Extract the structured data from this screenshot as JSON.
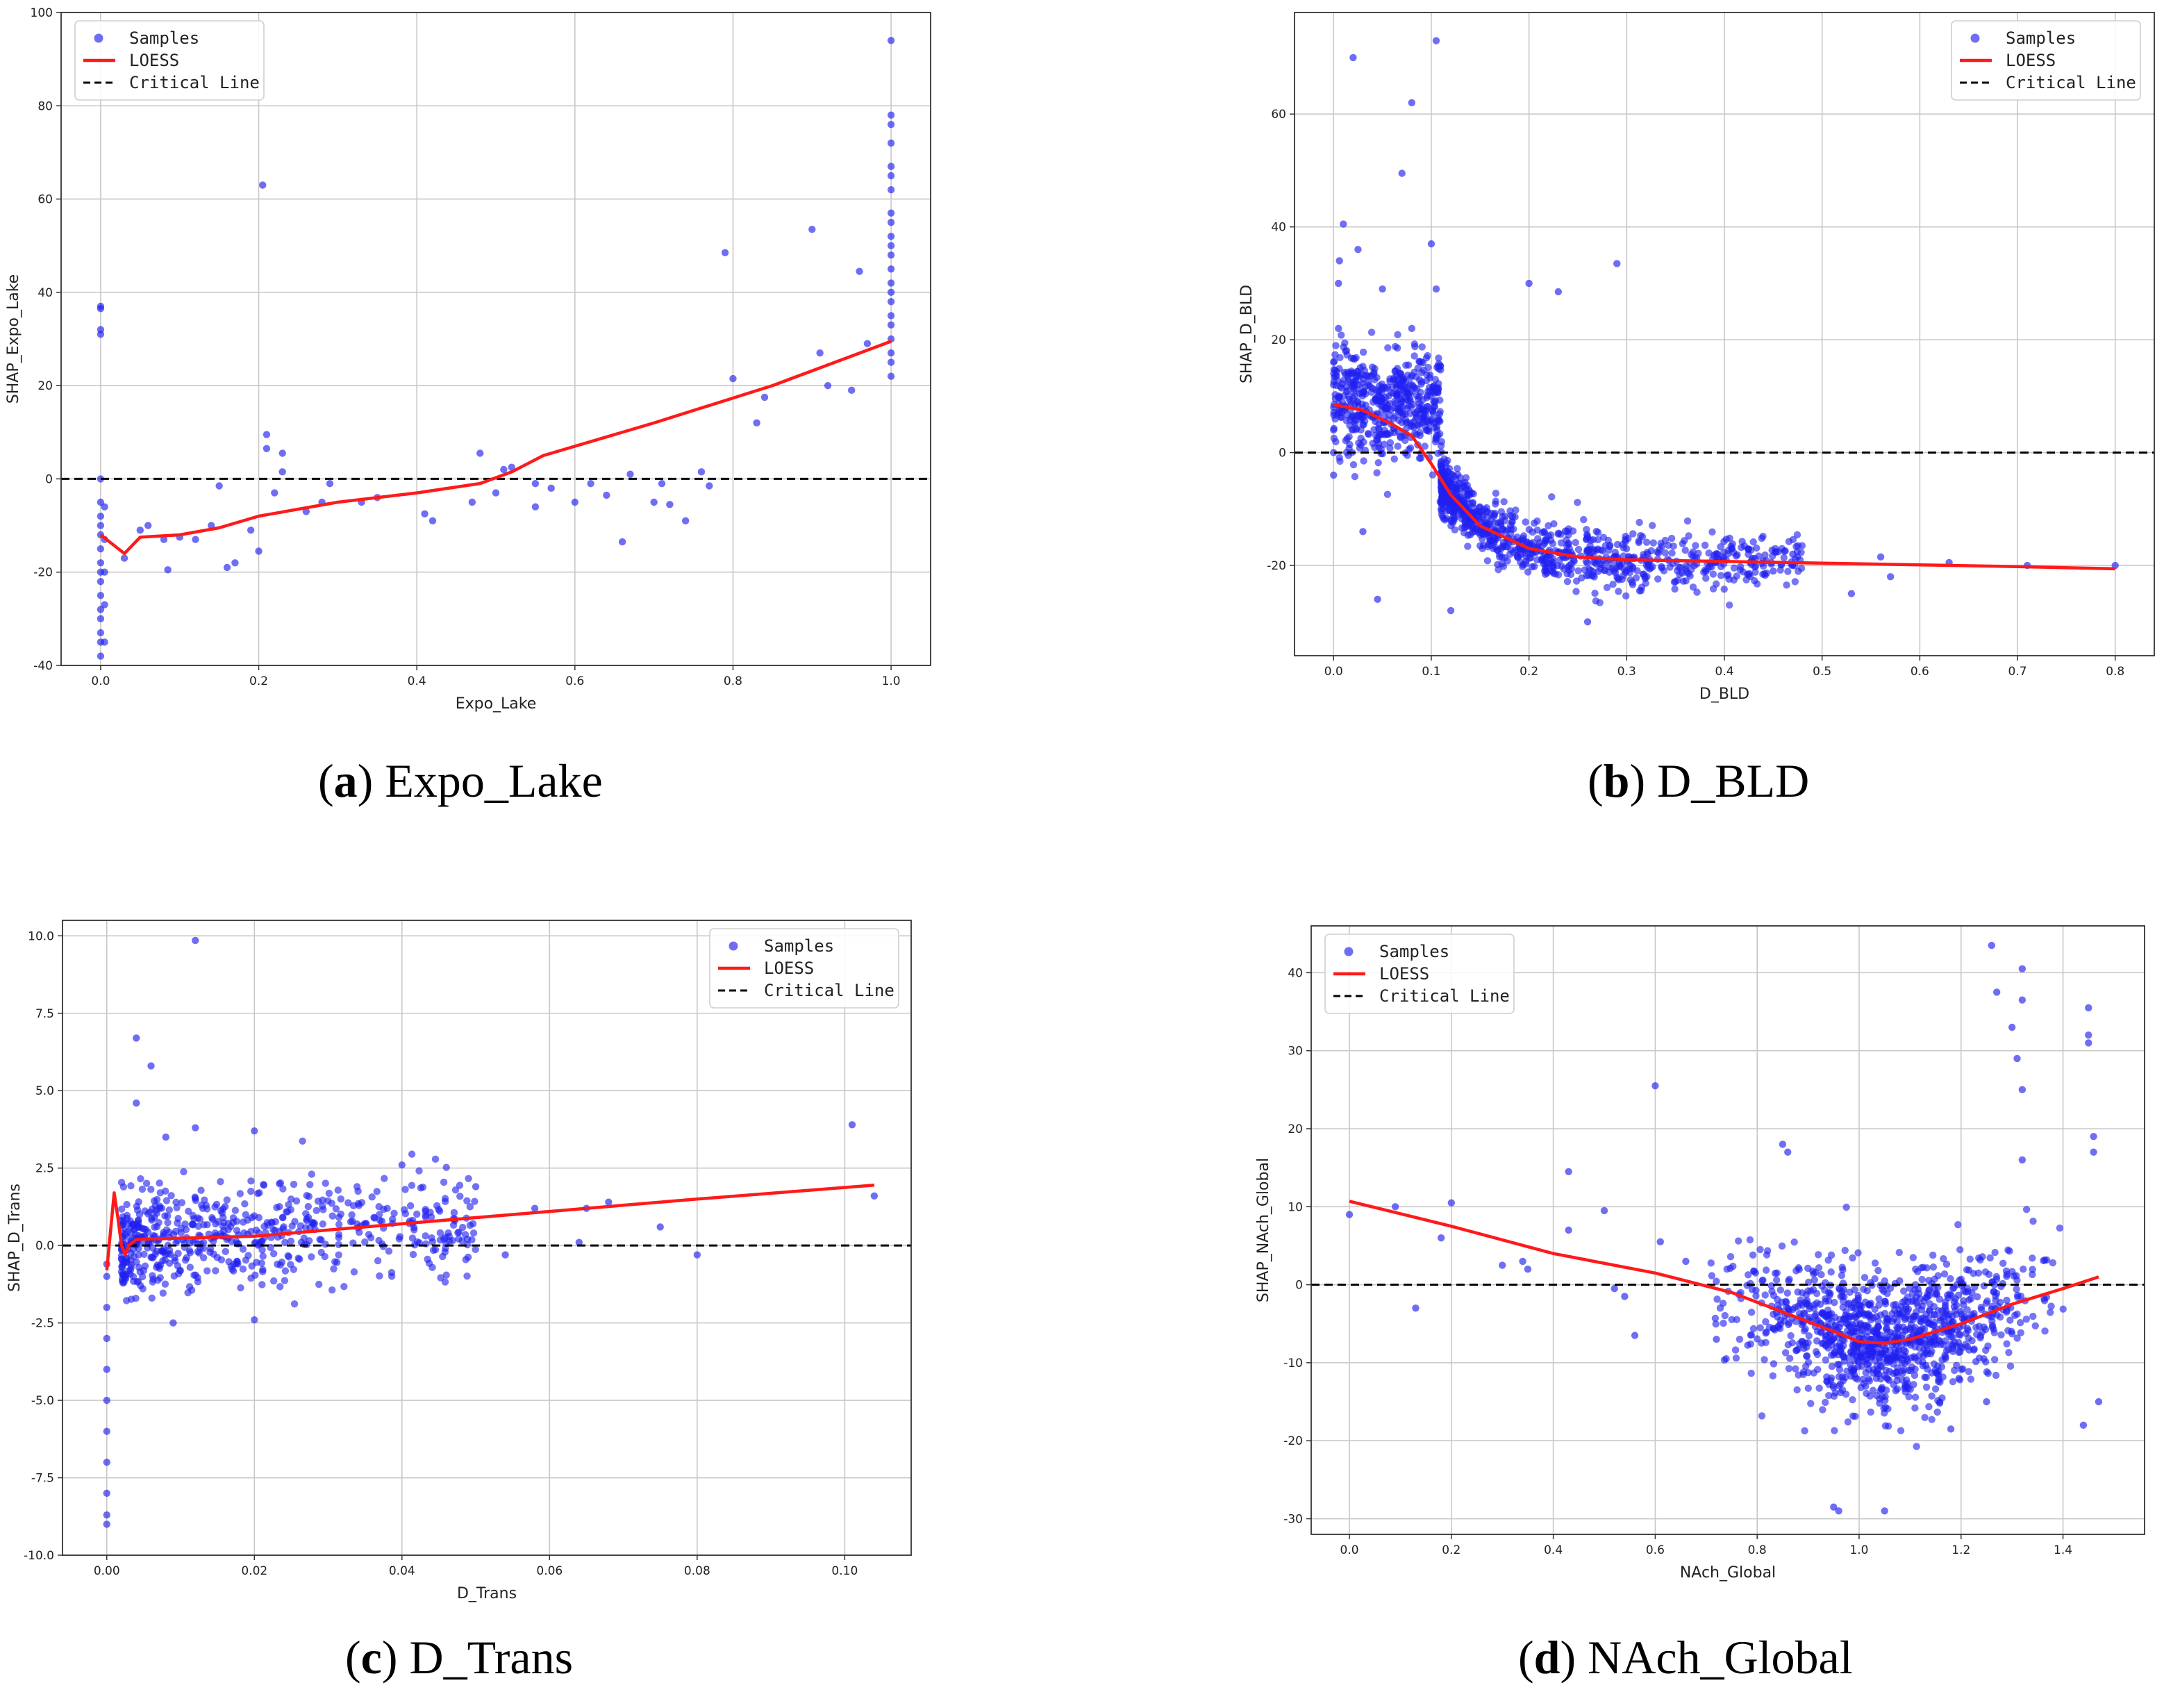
{
  "chart_data": [
    {
      "id": "a",
      "type": "scatter",
      "caption_letter": "a",
      "caption_text": "Expo_Lake",
      "xlabel": "Expo_Lake",
      "ylabel": "SHAP_Expo_Lake",
      "xlim": [
        -0.05,
        1.05
      ],
      "ylim": [
        -40,
        100
      ],
      "xticks": [
        0.0,
        0.2,
        0.4,
        0.6,
        0.8,
        1.0
      ],
      "xtick_labels": [
        "0.0",
        "0.2",
        "0.4",
        "0.6",
        "0.8",
        "1.0"
      ],
      "yticks": [
        -40,
        -20,
        0,
        20,
        40,
        60,
        80,
        100
      ],
      "ytick_labels": [
        "-40",
        "-20",
        "0",
        "20",
        "40",
        "60",
        "80",
        "100"
      ],
      "legend": [
        "Samples",
        "LOESS",
        "Critical Line"
      ],
      "legend_position": "top-left",
      "critical_line_y": 0,
      "loess": {
        "x": [
          0.0,
          0.03,
          0.05,
          0.1,
          0.15,
          0.2,
          0.3,
          0.4,
          0.48,
          0.52,
          0.56,
          0.7,
          0.85,
          1.0
        ],
        "y": [
          -12,
          -16,
          -12.5,
          -12,
          -10.5,
          -8,
          -5,
          -3,
          -1,
          1.5,
          5,
          12,
          20,
          29.5
        ]
      },
      "samples": [
        [
          0.0,
          -38
        ],
        [
          0.0,
          -35
        ],
        [
          0.0,
          -30
        ],
        [
          0.0,
          -25
        ],
        [
          0.0,
          -20
        ],
        [
          0.0,
          -15
        ],
        [
          0.0,
          -10
        ],
        [
          0.0,
          -5
        ],
        [
          0.0,
          0
        ],
        [
          0.0,
          31
        ],
        [
          0.0,
          32
        ],
        [
          0.0,
          36.5
        ],
        [
          0.0,
          37
        ],
        [
          0.0,
          -33
        ],
        [
          0.0,
          -28
        ],
        [
          0.0,
          -22
        ],
        [
          0.0,
          -18
        ],
        [
          0.0,
          -12
        ],
        [
          0.0,
          -8
        ],
        [
          0.005,
          -35
        ],
        [
          0.005,
          -27
        ],
        [
          0.005,
          -20
        ],
        [
          0.005,
          -13
        ],
        [
          0.005,
          -6
        ],
        [
          0.03,
          -17
        ],
        [
          0.05,
          -11
        ],
        [
          0.06,
          -10
        ],
        [
          0.08,
          -13
        ],
        [
          0.085,
          -19.5
        ],
        [
          0.1,
          -12.5
        ],
        [
          0.12,
          -13
        ],
        [
          0.14,
          -10
        ],
        [
          0.15,
          -1.5
        ],
        [
          0.16,
          -19
        ],
        [
          0.17,
          -18
        ],
        [
          0.19,
          -11
        ],
        [
          0.2,
          -15.5
        ],
        [
          0.205,
          63
        ],
        [
          0.21,
          9.5
        ],
        [
          0.21,
          6.5
        ],
        [
          0.22,
          -3
        ],
        [
          0.23,
          5.5
        ],
        [
          0.23,
          1.5
        ],
        [
          0.26,
          -7
        ],
        [
          0.28,
          -5
        ],
        [
          0.29,
          -1
        ],
        [
          0.33,
          -5
        ],
        [
          0.35,
          -4
        ],
        [
          0.41,
          -7.5
        ],
        [
          0.42,
          -9
        ],
        [
          0.47,
          -5
        ],
        [
          0.48,
          5.5
        ],
        [
          0.5,
          -3
        ],
        [
          0.51,
          2
        ],
        [
          0.52,
          2.5
        ],
        [
          0.55,
          -6
        ],
        [
          0.55,
          -1
        ],
        [
          0.57,
          -2
        ],
        [
          0.6,
          -5
        ],
        [
          0.62,
          -1
        ],
        [
          0.64,
          -3.5
        ],
        [
          0.66,
          -13.5
        ],
        [
          0.67,
          1
        ],
        [
          0.7,
          -5
        ],
        [
          0.71,
          -1
        ],
        [
          0.72,
          -5.5
        ],
        [
          0.74,
          -9
        ],
        [
          0.76,
          1.5
        ],
        [
          0.77,
          -1.5
        ],
        [
          0.79,
          48.5
        ],
        [
          0.8,
          21.5
        ],
        [
          0.83,
          12
        ],
        [
          0.84,
          17.5
        ],
        [
          0.9,
          53.5
        ],
        [
          0.91,
          27
        ],
        [
          0.92,
          20
        ],
        [
          0.95,
          19
        ],
        [
          0.96,
          44.5
        ],
        [
          0.97,
          29
        ],
        [
          1.0,
          25
        ],
        [
          1.0,
          30
        ],
        [
          1.0,
          35
        ],
        [
          1.0,
          40
        ],
        [
          1.0,
          45
        ],
        [
          1.0,
          50
        ],
        [
          1.0,
          55
        ],
        [
          1.0,
          57
        ],
        [
          1.0,
          62
        ],
        [
          1.0,
          65
        ],
        [
          1.0,
          67
        ],
        [
          1.0,
          72
        ],
        [
          1.0,
          76
        ],
        [
          1.0,
          78
        ],
        [
          1.0,
          94
        ],
        [
          1.0,
          22
        ],
        [
          1.0,
          27
        ],
        [
          1.0,
          33
        ],
        [
          1.0,
          38
        ],
        [
          1.0,
          42
        ],
        [
          1.0,
          48
        ],
        [
          1.0,
          52
        ]
      ]
    },
    {
      "id": "b",
      "type": "scatter",
      "caption_letter": "b",
      "caption_text": "D_BLD",
      "xlabel": "D_BLD",
      "ylabel": "SHAP_D_BLD",
      "xlim": [
        -0.04,
        0.84
      ],
      "ylim": [
        -36,
        78
      ],
      "xticks": [
        0.0,
        0.1,
        0.2,
        0.3,
        0.4,
        0.5,
        0.6,
        0.7,
        0.8
      ],
      "xtick_labels": [
        "0.0",
        "0.1",
        "0.2",
        "0.3",
        "0.4",
        "0.5",
        "0.6",
        "0.7",
        "0.8"
      ],
      "yticks": [
        -20,
        0,
        20,
        40,
        60
      ],
      "ytick_labels": [
        "-20",
        "0",
        "20",
        "40",
        "60"
      ],
      "legend": [
        "Samples",
        "LOESS",
        "Critical Line"
      ],
      "legend_position": "top-right",
      "critical_line_y": 0,
      "loess": {
        "x": [
          0.0,
          0.03,
          0.06,
          0.08,
          0.1,
          0.12,
          0.15,
          0.2,
          0.25,
          0.3,
          0.4,
          0.5,
          0.6,
          0.7,
          0.8
        ],
        "y": [
          8.5,
          7.5,
          5,
          3,
          -2,
          -7.5,
          -13,
          -17,
          -18.5,
          -19,
          -19.3,
          -19.6,
          -19.9,
          -20.2,
          -20.6
        ]
      },
      "samples": [
        [
          0.0,
          -4
        ],
        [
          0.0,
          0
        ],
        [
          0.0,
          4
        ],
        [
          0.0,
          8
        ],
        [
          0.0,
          12
        ],
        [
          0.0,
          16
        ],
        [
          0.005,
          22
        ],
        [
          0.005,
          30
        ],
        [
          0.006,
          34
        ],
        [
          0.01,
          40.5
        ],
        [
          0.02,
          70
        ],
        [
          0.025,
          36
        ],
        [
          0.03,
          -14
        ],
        [
          0.045,
          -26
        ],
        [
          0.05,
          29
        ],
        [
          0.07,
          49.5
        ],
        [
          0.08,
          62
        ],
        [
          0.08,
          22
        ],
        [
          0.1,
          37
        ],
        [
          0.105,
          73
        ],
        [
          0.105,
          29
        ],
        [
          0.2,
          30
        ],
        [
          0.23,
          28.5
        ],
        [
          0.29,
          33.5
        ],
        [
          0.12,
          -28
        ],
        [
          0.26,
          -30
        ],
        [
          0.53,
          -25
        ],
        [
          0.63,
          -19.5
        ],
        [
          0.71,
          -20
        ],
        [
          0.8,
          -20
        ],
        [
          0.56,
          -18.5
        ],
        [
          0.57,
          -22
        ],
        [
          0.45,
          -21
        ],
        [
          0.47,
          -18
        ]
      ]
    },
    {
      "id": "c",
      "type": "scatter",
      "caption_letter": "c",
      "caption_text": "D_Trans",
      "xlabel": "D_Trans",
      "ylabel": "SHAP_D_Trans",
      "xlim": [
        -0.006,
        0.109
      ],
      "ylim": [
        -10,
        10.5
      ],
      "xticks": [
        0.0,
        0.02,
        0.04,
        0.06,
        0.08,
        0.1
      ],
      "xtick_labels": [
        "0.00",
        "0.02",
        "0.04",
        "0.06",
        "0.08",
        "0.10"
      ],
      "yticks": [
        -10,
        -7.5,
        -5,
        -2.5,
        0,
        2.5,
        5,
        7.5,
        10
      ],
      "ytick_labels": [
        "-10.0",
        "-7.5",
        "-5.0",
        "-2.5",
        "0.0",
        "2.5",
        "5.0",
        "7.5",
        "10.0"
      ],
      "legend": [
        "Samples",
        "LOESS",
        "Critical Line"
      ],
      "legend_position": "top-right",
      "critical_line_y": 0,
      "loess": {
        "x": [
          0.0,
          0.001,
          0.0015,
          0.002,
          0.0025,
          0.003,
          0.004,
          0.02,
          0.04,
          0.06,
          0.08,
          0.104
        ],
        "y": [
          -0.8,
          1.7,
          0.9,
          0.0,
          -0.3,
          0.0,
          0.2,
          0.3,
          0.7,
          1.1,
          1.5,
          1.95
        ]
      },
      "samples": [
        [
          0.0,
          -9
        ],
        [
          0.0,
          -8.7
        ],
        [
          0.0,
          -8
        ],
        [
          0.0,
          -7
        ],
        [
          0.0,
          -6
        ],
        [
          0.0,
          -5
        ],
        [
          0.0,
          -4
        ],
        [
          0.0,
          -3
        ],
        [
          0.0,
          -2
        ],
        [
          0.0,
          -1
        ],
        [
          0.0,
          -0.6
        ],
        [
          0.012,
          9.85
        ],
        [
          0.004,
          6.7
        ],
        [
          0.006,
          5.8
        ],
        [
          0.004,
          4.6
        ],
        [
          0.008,
          3.5
        ],
        [
          0.012,
          3.8
        ],
        [
          0.02,
          3.7
        ],
        [
          0.04,
          2.6
        ],
        [
          0.05,
          1.9
        ],
        [
          0.054,
          -0.3
        ],
        [
          0.058,
          1.2
        ],
        [
          0.065,
          1.2
        ],
        [
          0.068,
          1.4
        ],
        [
          0.064,
          0.1
        ],
        [
          0.075,
          0.6
        ],
        [
          0.08,
          -0.3
        ],
        [
          0.101,
          3.9
        ],
        [
          0.104,
          1.6
        ],
        [
          0.02,
          -2.4
        ],
        [
          0.009,
          -2.5
        ]
      ]
    },
    {
      "id": "d",
      "type": "scatter",
      "caption_letter": "d",
      "caption_text": "NAch_Global",
      "xlabel": "NAch_Global",
      "ylabel": "SHAP_NAch_Global",
      "xlim": [
        -0.075,
        1.56
      ],
      "ylim": [
        -32,
        46
      ],
      "xticks": [
        0.0,
        0.2,
        0.4,
        0.6,
        0.8,
        1.0,
        1.2,
        1.4
      ],
      "xtick_labels": [
        "0.0",
        "0.2",
        "0.4",
        "0.6",
        "0.8",
        "1.0",
        "1.2",
        "1.4"
      ],
      "yticks": [
        -30,
        -20,
        -10,
        0,
        10,
        20,
        30,
        40
      ],
      "ytick_labels": [
        "-30",
        "-20",
        "-10",
        "0",
        "10",
        "20",
        "30",
        "40"
      ],
      "legend": [
        "Samples",
        "LOESS",
        "Critical Line"
      ],
      "legend_position": "top-left",
      "critical_line_y": 0,
      "loess": {
        "x": [
          0.0,
          0.2,
          0.4,
          0.6,
          0.75,
          0.85,
          0.95,
          1.0,
          1.05,
          1.1,
          1.2,
          1.3,
          1.4,
          1.47
        ],
        "y": [
          10.7,
          7.5,
          4,
          1.5,
          -1,
          -3.5,
          -6,
          -7.3,
          -7.5,
          -7,
          -5,
          -2.5,
          -0.5,
          1
        ]
      },
      "samples": [
        [
          0.0,
          9
        ],
        [
          0.09,
          10
        ],
        [
          0.13,
          -3
        ],
        [
          0.18,
          6
        ],
        [
          0.2,
          10.5
        ],
        [
          0.3,
          2.5
        ],
        [
          0.34,
          3
        ],
        [
          0.35,
          2
        ],
        [
          0.43,
          14.5
        ],
        [
          0.43,
          7
        ],
        [
          0.5,
          9.5
        ],
        [
          0.52,
          -0.5
        ],
        [
          0.54,
          -1.5
        ],
        [
          0.56,
          -6.5
        ],
        [
          0.6,
          25.5
        ],
        [
          0.61,
          5.5
        ],
        [
          0.66,
          3
        ],
        [
          0.72,
          -7
        ],
        [
          0.85,
          18
        ],
        [
          0.86,
          17
        ],
        [
          0.95,
          -28.5
        ],
        [
          0.96,
          -29
        ],
        [
          1.05,
          -29
        ],
        [
          1.26,
          43.5
        ],
        [
          1.27,
          37.5
        ],
        [
          1.3,
          33
        ],
        [
          1.32,
          40.5
        ],
        [
          1.32,
          36.5
        ],
        [
          1.31,
          29
        ],
        [
          1.32,
          25
        ],
        [
          1.32,
          16
        ],
        [
          1.45,
          35.5
        ],
        [
          1.45,
          32
        ],
        [
          1.45,
          31
        ],
        [
          1.46,
          19
        ],
        [
          1.46,
          17
        ],
        [
          1.47,
          -15
        ],
        [
          1.44,
          -18
        ],
        [
          1.18,
          -18.5
        ],
        [
          1.25,
          -15
        ]
      ]
    }
  ]
}
